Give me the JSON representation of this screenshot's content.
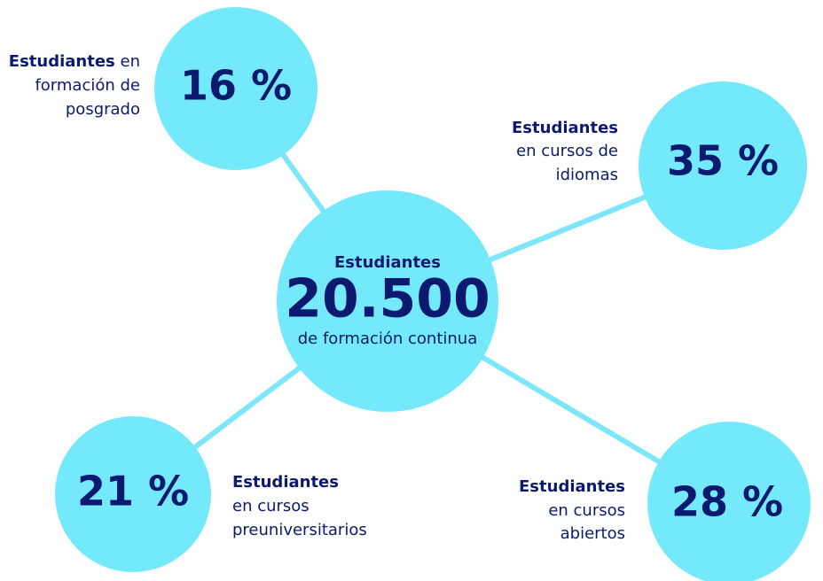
{
  "center": {
    "top": "Estudiantes",
    "number": "20.500",
    "bottom": "de formación continua"
  },
  "nodes": [
    {
      "value": "16 %",
      "label_bold": "Estudiantes",
      "label_lines": [
        "en",
        "formación de",
        "posgrado"
      ]
    },
    {
      "value": "35 %",
      "label_bold": "Estudiantes",
      "label_lines": [
        "en cursos de",
        "idiomas"
      ]
    },
    {
      "value": "21 %",
      "label_bold": "Estudiantes",
      "label_lines": [
        "en cursos",
        "preuniversitarios"
      ]
    },
    {
      "value": "28 %",
      "label_bold": "Estudiantes",
      "label_lines": [
        "en cursos",
        "abiertos"
      ]
    }
  ]
}
